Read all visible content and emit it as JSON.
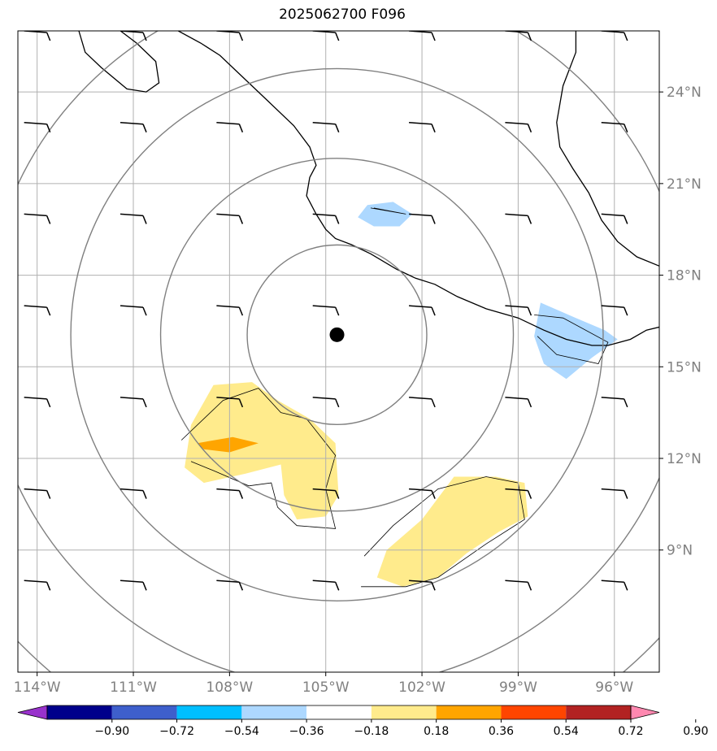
{
  "title": "2025062700 F096",
  "chart_data": {
    "type": "map",
    "title": "2025062700 F096",
    "lon_range": [
      -114.6,
      -94.6
    ],
    "lat_range": [
      5.0,
      26.0
    ],
    "lon_ticks": [
      -114,
      -111,
      -108,
      -105,
      -102,
      -99,
      -96
    ],
    "lon_tick_labels": [
      "114°W",
      "111°W",
      "108°W",
      "105°W",
      "102°W",
      "99°W",
      "96°W"
    ],
    "lat_ticks": [
      9,
      12,
      15,
      18,
      21,
      24
    ],
    "lat_tick_labels": [
      "9°N",
      "12°N",
      "15°N",
      "18°N",
      "21°N",
      "24°N"
    ],
    "grid": true,
    "center_marker": {
      "lon": -104.65,
      "lat": 16.05
    },
    "range_rings_deg": [
      2.8,
      5.5,
      8.3,
      11.0,
      13.8
    ],
    "coastline": [
      [
        -112.7,
        26.0
      ],
      [
        -112.5,
        25.3
      ],
      [
        -112.0,
        24.8
      ],
      [
        -111.2,
        24.1
      ],
      [
        -110.6,
        24.0
      ],
      [
        -110.2,
        24.3
      ],
      [
        -110.3,
        25.0
      ],
      [
        -110.9,
        25.6
      ],
      [
        -111.4,
        26.0
      ]
    ],
    "coastline_mainland": [
      [
        -109.6,
        26.0
      ],
      [
        -108.9,
        25.6
      ],
      [
        -108.3,
        25.2
      ],
      [
        -107.6,
        24.5
      ],
      [
        -106.8,
        23.7
      ],
      [
        -106.0,
        22.9
      ],
      [
        -105.5,
        22.2
      ],
      [
        -105.3,
        21.6
      ],
      [
        -105.5,
        21.2
      ],
      [
        -105.6,
        20.6
      ],
      [
        -105.3,
        20.0
      ],
      [
        -105.0,
        19.5
      ],
      [
        -104.7,
        19.2
      ],
      [
        -104.2,
        19.0
      ],
      [
        -103.6,
        18.7
      ],
      [
        -102.8,
        18.2
      ],
      [
        -102.2,
        17.9
      ],
      [
        -101.6,
        17.7
      ],
      [
        -100.9,
        17.3
      ],
      [
        -100.0,
        16.9
      ],
      [
        -99.0,
        16.6
      ],
      [
        -98.2,
        16.2
      ],
      [
        -97.5,
        15.9
      ],
      [
        -96.7,
        15.7
      ],
      [
        -96.2,
        15.7
      ],
      [
        -95.5,
        15.9
      ],
      [
        -95.0,
        16.2
      ],
      [
        -94.6,
        16.3
      ]
    ],
    "coastline_gulf": [
      [
        -97.2,
        26.0
      ],
      [
        -97.2,
        25.3
      ],
      [
        -97.6,
        24.2
      ],
      [
        -97.8,
        23.0
      ],
      [
        -97.7,
        22.2
      ],
      [
        -97.3,
        21.5
      ],
      [
        -96.8,
        20.7
      ],
      [
        -96.4,
        19.8
      ],
      [
        -95.9,
        19.1
      ],
      [
        -95.3,
        18.6
      ],
      [
        -94.6,
        18.3
      ]
    ],
    "vorticity_fill": [
      {
        "level": -0.27,
        "color": "#add8ff",
        "polygon": [
          [
            -103.7,
            20.3
          ],
          [
            -102.9,
            20.4
          ],
          [
            -102.3,
            20.0
          ],
          [
            -102.7,
            19.6
          ],
          [
            -103.5,
            19.6
          ],
          [
            -104.0,
            19.9
          ]
        ]
      },
      {
        "level": -0.27,
        "color": "#add8ff",
        "polygon": [
          [
            -98.3,
            17.1
          ],
          [
            -97.2,
            16.6
          ],
          [
            -96.3,
            16.2
          ],
          [
            -95.9,
            15.9
          ],
          [
            -96.7,
            15.3
          ],
          [
            -97.5,
            14.6
          ],
          [
            -98.2,
            15.1
          ],
          [
            -98.5,
            16.0
          ]
        ]
      },
      {
        "level": 0.27,
        "color": "#ffeb8c",
        "polygon": [
          [
            -108.5,
            14.4
          ],
          [
            -107.3,
            14.5
          ],
          [
            -106.5,
            13.9
          ],
          [
            -105.5,
            13.3
          ],
          [
            -104.7,
            12.5
          ],
          [
            -104.6,
            10.8
          ],
          [
            -105.0,
            10.1
          ],
          [
            -105.9,
            10.0
          ],
          [
            -106.3,
            10.8
          ],
          [
            -106.4,
            11.8
          ],
          [
            -107.5,
            11.5
          ],
          [
            -108.8,
            11.2
          ],
          [
            -109.4,
            11.7
          ],
          [
            -109.2,
            13.1
          ]
        ]
      },
      {
        "level": 0.27,
        "color": "#ffeb8c",
        "polygon": [
          [
            -101.0,
            11.4
          ],
          [
            -99.7,
            11.4
          ],
          [
            -98.8,
            11.2
          ],
          [
            -98.7,
            10.1
          ],
          [
            -99.6,
            9.6
          ],
          [
            -100.6,
            8.9
          ],
          [
            -101.5,
            8.1
          ],
          [
            -102.6,
            7.8
          ],
          [
            -103.4,
            8.1
          ],
          [
            -103.1,
            9.0
          ],
          [
            -102.0,
            10.0
          ]
        ]
      },
      {
        "level": 0.45,
        "color": "#ffa500",
        "polygon": [
          [
            -109.0,
            12.5
          ],
          [
            -107.9,
            12.7
          ],
          [
            -107.1,
            12.5
          ],
          [
            -108.0,
            12.2
          ],
          [
            -108.8,
            12.3
          ]
        ]
      }
    ],
    "contour_lines": [
      [
        [
          -109.5,
          12.6
        ],
        [
          -108.2,
          13.9
        ],
        [
          -107.1,
          14.3
        ],
        [
          -106.4,
          13.5
        ],
        [
          -105.6,
          13.3
        ],
        [
          -104.7,
          12.1
        ],
        [
          -105.0,
          11.0
        ],
        [
          -104.7,
          9.7
        ],
        [
          -105.9,
          9.8
        ],
        [
          -106.5,
          10.4
        ],
        [
          -106.7,
          11.2
        ],
        [
          -107.4,
          11.1
        ],
        [
          -108.5,
          11.6
        ],
        [
          -109.2,
          11.9
        ]
      ],
      [
        [
          -103.8,
          8.8
        ],
        [
          -102.9,
          9.8
        ],
        [
          -101.5,
          11.0
        ],
        [
          -100.0,
          11.4
        ],
        [
          -99.0,
          11.2
        ],
        [
          -98.8,
          10.0
        ],
        [
          -100.0,
          9.2
        ],
        [
          -101.5,
          8.1
        ],
        [
          -102.5,
          7.8
        ],
        [
          -103.9,
          7.8
        ]
      ],
      [
        [
          -103.6,
          20.2
        ],
        [
          -102.5,
          20.0
        ],
        [
          -103.5,
          20.2
        ]
      ],
      [
        [
          -98.5,
          16.7
        ],
        [
          -97.6,
          16.6
        ],
        [
          -96.2,
          15.8
        ],
        [
          -96.5,
          15.1
        ],
        [
          -97.8,
          15.4
        ],
        [
          -98.4,
          16.0
        ]
      ]
    ],
    "wind_barbs_lon": [
      -114,
      -111,
      -108,
      -105,
      -102,
      -99,
      -96
    ],
    "wind_barbs_lat": [
      8,
      11,
      14,
      17,
      20,
      23,
      26
    ],
    "colorbar": {
      "levels": [
        "-0.90",
        "-0.72",
        "-0.54",
        "-0.36",
        "-0.18",
        "0.18",
        "0.36",
        "0.54",
        "0.72",
        "0.90"
      ],
      "colors": [
        "#9932cc",
        "#00008b",
        "#3e5fcc",
        "#00bfff",
        "#add8ff",
        "#ffffff",
        "#ffeb8c",
        "#ffa500",
        "#ff4500",
        "#b22222",
        "#ff88b0"
      ]
    }
  }
}
